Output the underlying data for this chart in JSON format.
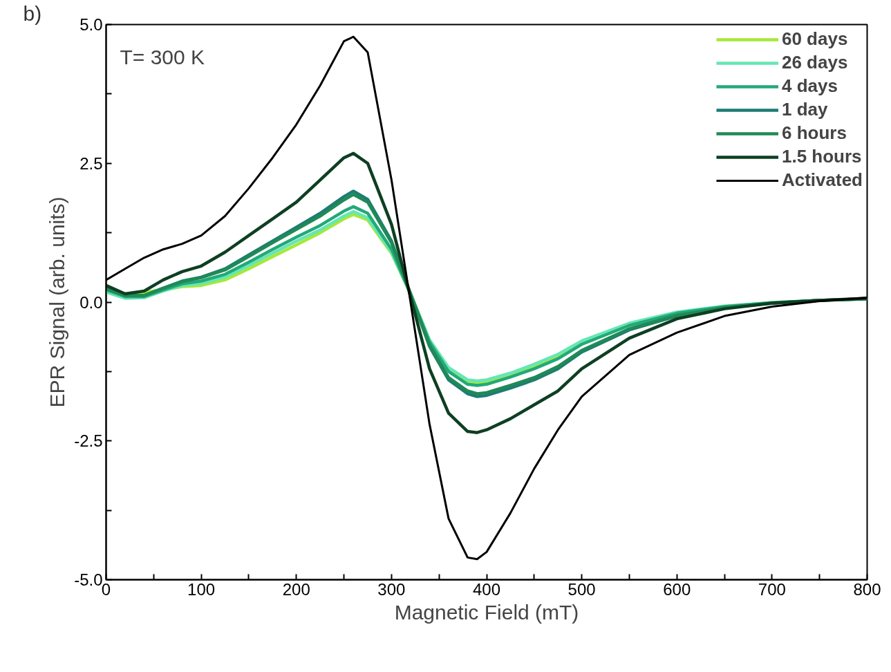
{
  "chart_data": {
    "type": "line",
    "xlabel": "Magnetic Field (mT)",
    "ylabel": "EPR Signal (arb. units)",
    "annotations": [
      "b)",
      "T= 300 K"
    ],
    "x": [
      0,
      20,
      40,
      60,
      80,
      100,
      125,
      150,
      175,
      200,
      225,
      250,
      260,
      275,
      300,
      320,
      340,
      360,
      380,
      390,
      400,
      425,
      450,
      475,
      500,
      550,
      600,
      650,
      700,
      750,
      800
    ],
    "series": [
      {
        "name": "60 days",
        "color": "#a6e83a",
        "values": [
          0.2,
          0.15,
          0.18,
          0.22,
          0.28,
          0.3,
          0.4,
          0.6,
          0.82,
          1.03,
          1.25,
          1.5,
          1.58,
          1.48,
          0.88,
          0.15,
          -0.7,
          -1.22,
          -1.44,
          -1.46,
          -1.44,
          -1.32,
          -1.16,
          -0.98,
          -0.73,
          -0.4,
          null,
          null,
          null,
          null,
          null
        ]
      },
      {
        "name": "26 days",
        "color": "#66e6b4",
        "values": [
          0.18,
          0.07,
          0.08,
          0.2,
          0.3,
          0.34,
          0.45,
          0.66,
          0.88,
          1.1,
          1.3,
          1.55,
          1.63,
          1.52,
          0.9,
          0.15,
          -0.68,
          -1.18,
          -1.4,
          -1.42,
          -1.4,
          -1.28,
          -1.12,
          -0.94,
          -0.7,
          -0.38,
          -0.18,
          -0.07,
          -0.01,
          0.03,
          null
        ]
      },
      {
        "name": "4 days",
        "color": "#22a97a",
        "values": [
          0.22,
          0.1,
          0.1,
          0.22,
          0.33,
          0.38,
          0.5,
          0.72,
          0.95,
          1.17,
          1.38,
          1.64,
          1.72,
          1.6,
          0.95,
          0.15,
          -0.72,
          -1.25,
          -1.48,
          -1.5,
          -1.48,
          -1.35,
          -1.2,
          -1.02,
          -0.76,
          -0.42,
          -0.2,
          -0.08,
          -0.01,
          0.03,
          0.06
        ]
      },
      {
        "name": "1 day",
        "color": "#1e7c74",
        "values": [
          0.25,
          0.12,
          0.12,
          0.25,
          0.38,
          0.45,
          0.6,
          0.85,
          1.1,
          1.35,
          1.6,
          1.9,
          2.0,
          1.85,
          1.1,
          0.15,
          -0.8,
          -1.4,
          -1.65,
          -1.7,
          -1.68,
          -1.55,
          -1.4,
          -1.2,
          -0.9,
          -0.5,
          -0.25,
          -0.1,
          -0.02,
          0.03,
          0.06
        ]
      },
      {
        "name": "6 hours",
        "color": "#1f8a55",
        "values": [
          0.25,
          0.12,
          0.12,
          0.25,
          0.37,
          0.44,
          0.58,
          0.82,
          1.07,
          1.31,
          1.55,
          1.84,
          1.94,
          1.8,
          1.07,
          0.15,
          -0.78,
          -1.36,
          -1.6,
          -1.65,
          -1.63,
          -1.5,
          -1.36,
          -1.16,
          -0.87,
          -0.48,
          -0.24,
          -0.1,
          -0.02,
          0.03,
          0.06
        ]
      },
      {
        "name": "1.5 hours",
        "color": "#0e3f22",
        "values": [
          0.3,
          0.15,
          0.2,
          0.4,
          0.55,
          0.65,
          0.9,
          1.2,
          1.5,
          1.8,
          2.2,
          2.6,
          2.68,
          2.5,
          1.4,
          0.1,
          -1.2,
          -2.0,
          -2.33,
          -2.35,
          -2.3,
          -2.1,
          -1.85,
          -1.6,
          -1.2,
          -0.65,
          -0.3,
          -0.12,
          -0.02,
          0.03,
          0.07
        ]
      },
      {
        "name": "Activated",
        "color": "#000000",
        "values": [
          0.4,
          0.6,
          0.8,
          0.95,
          1.05,
          1.2,
          1.55,
          2.05,
          2.6,
          3.2,
          3.9,
          4.7,
          4.78,
          4.5,
          2.2,
          0.0,
          -2.2,
          -3.9,
          -4.6,
          -4.63,
          -4.5,
          -3.8,
          -3.0,
          -2.3,
          -1.7,
          -0.95,
          -0.55,
          -0.25,
          -0.08,
          0.02,
          0.08
        ]
      }
    ],
    "xlim": [
      0,
      800
    ],
    "ylim": [
      -5.0,
      5.0
    ],
    "xticks": [
      0,
      {
        "value": 50,
        "label": null
      },
      100,
      {
        "value": 150,
        "label": null
      },
      200,
      {
        "value": 250,
        "label": null
      },
      300,
      {
        "value": 350,
        "label": null
      },
      400,
      {
        "value": 450,
        "label": null
      },
      500,
      {
        "value": 550,
        "label": null
      },
      600,
      {
        "value": 650,
        "label": null
      },
      700,
      {
        "value": 750,
        "label": null
      },
      800
    ],
    "yticks": [
      {
        "value": -5,
        "label": "-5.0"
      },
      {
        "value": -3.75,
        "label": null
      },
      {
        "value": -2.5,
        "label": "-2.5"
      },
      {
        "value": -1.25,
        "label": null
      },
      {
        "value": 0,
        "label": "0.0"
      },
      {
        "value": 1.25,
        "label": null
      },
      {
        "value": 2.5,
        "label": "2.5"
      },
      {
        "value": 3.75,
        "label": null
      },
      {
        "value": 5,
        "label": "5.0"
      }
    ],
    "grid": false,
    "legend": "top right",
    "line_style": "solid"
  }
}
